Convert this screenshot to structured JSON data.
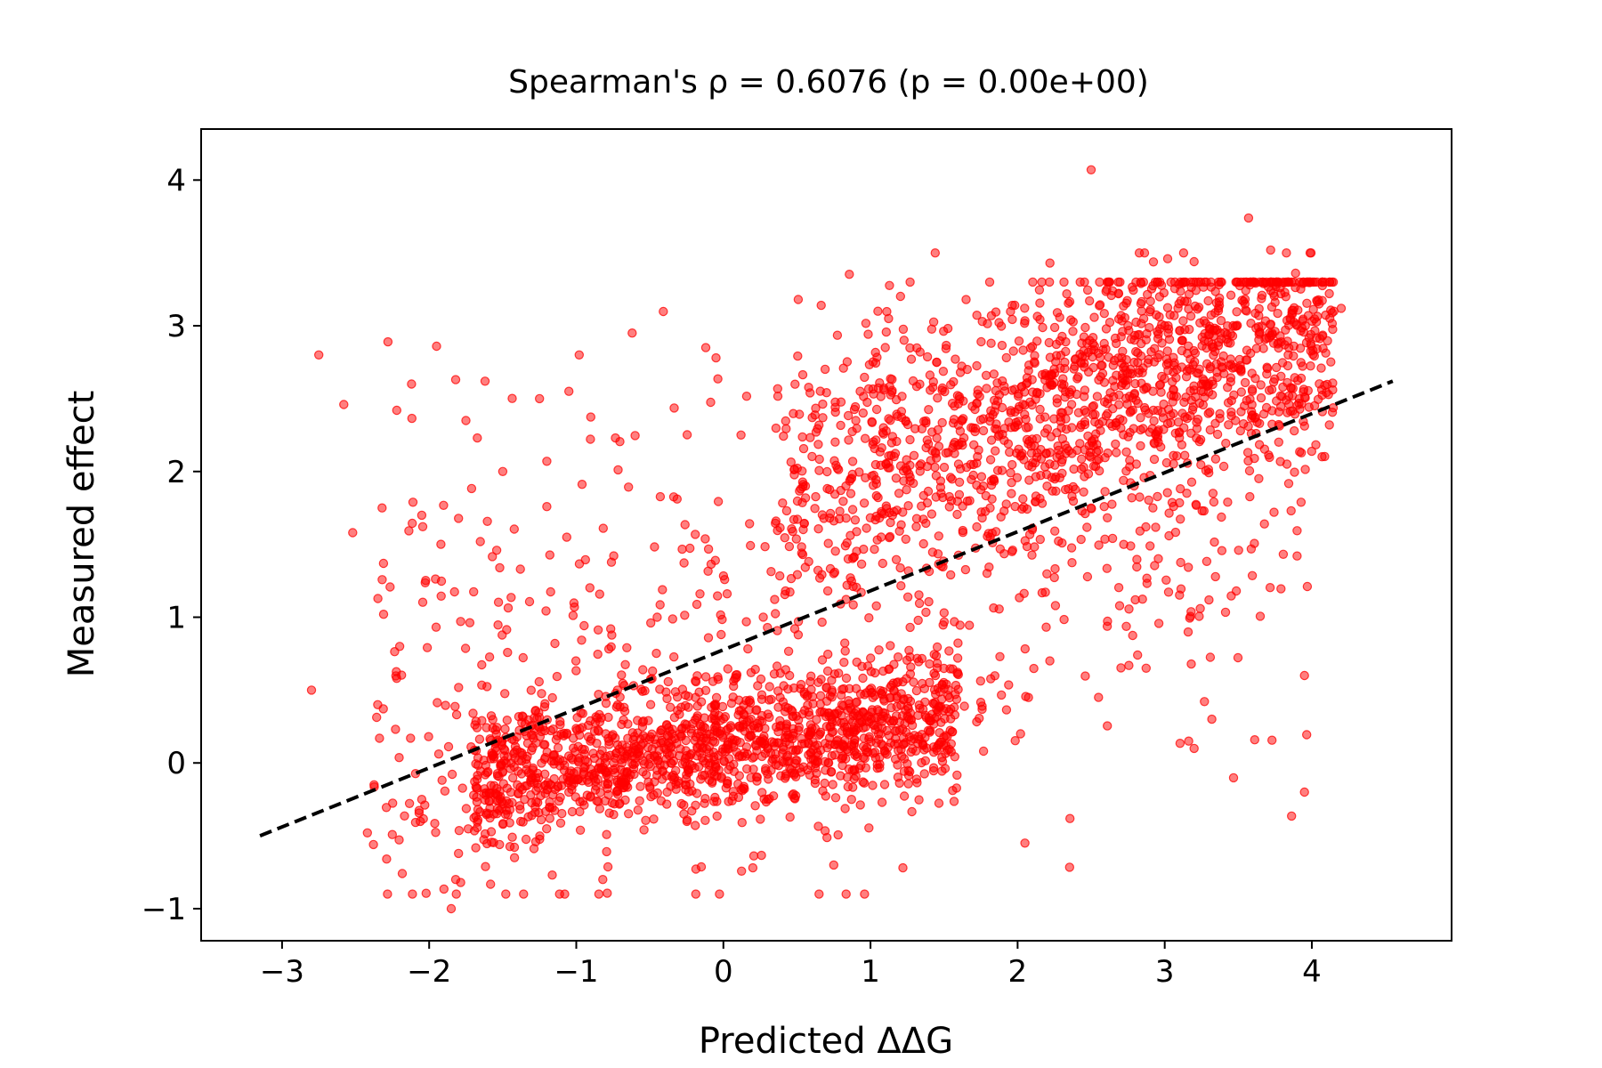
{
  "chart_data": {
    "type": "scatter",
    "title": "Spearman's ρ = 0.6076 (p = 0.00e+00)",
    "xlabel": "Predicted ΔΔG",
    "ylabel": "Measured effect",
    "xlim": [
      -3.55,
      4.95
    ],
    "ylim": [
      -1.22,
      4.35
    ],
    "xticks": [
      -3,
      -2,
      -1,
      0,
      1,
      2,
      3,
      4
    ],
    "xtick_labels": [
      "−3",
      "−2",
      "−1",
      "0",
      "1",
      "2",
      "3",
      "4"
    ],
    "yticks": [
      -1,
      0,
      1,
      2,
      3,
      4
    ],
    "ytick_labels": [
      "−1",
      "0",
      "1",
      "2",
      "3",
      "4"
    ],
    "grid": false,
    "legend": "none",
    "point_color": "#ff0000",
    "point_alpha": 0.5,
    "trend_line": {
      "style": "dashed",
      "color": "#000000",
      "x": [
        -3.15,
        4.55
      ],
      "y": [
        -0.5,
        2.62
      ]
    },
    "points_approx_count": 4000,
    "series": [
      {
        "values_note": "representative sample of individual points read from the figure",
        "x": [
          -2.8,
          -2.75,
          -2.58,
          -2.52,
          -2.35,
          -2.28,
          -2.31,
          -2.2,
          -2.32,
          -2.22,
          -2.12,
          -2.05,
          -1.95,
          -1.92,
          -1.82,
          -1.85,
          -1.75,
          -1.62,
          -1.5,
          -1.38,
          -1.25,
          -1.2,
          -1.05,
          -0.98,
          -0.82,
          -0.62,
          -0.45,
          -0.3,
          -0.12,
          -0.05,
          0.12,
          0.25,
          0.45,
          0.75,
          1.05,
          1.45,
          1.62,
          1.65,
          1.82,
          2.02,
          2.22,
          2.3,
          2.5,
          2.55,
          2.75,
          2.92,
          3.0,
          3.12,
          3.2,
          3.32,
          3.38,
          3.57,
          3.72,
          3.95,
          4.05,
          4.15,
          4.2,
          3.95,
          3.2,
          2.05,
          1.22,
          0.75,
          0.2,
          -0.25,
          -0.72,
          -0.8,
          -1.42,
          -1.82,
          -2.42,
          -2.05,
          3.02,
          3.45,
          3.9,
          2.6,
          2.8,
          2.1,
          1.48,
          0.9
        ],
        "y": [
          0.5,
          2.8,
          2.46,
          1.58,
          0.4,
          2.89,
          1.02,
          0.8,
          1.75,
          2.42,
          2.6,
          1.7,
          2.86,
          1.5,
          2.63,
          -1.0,
          2.35,
          2.62,
          2.0,
          1.33,
          2.5,
          2.07,
          2.55,
          2.8,
          -0.8,
          2.95,
          1.0,
          0.05,
          2.85,
          2.78,
          2.25,
          0.15,
          0.6,
          -0.7,
          3.1,
          2.75,
          2.2,
          3.18,
          2.88,
          0.2,
          3.43,
          2.6,
          4.07,
          0.45,
          3.0,
          2.55,
          3.0,
          2.9,
          3.44,
          0.3,
          2.95,
          3.74,
          3.52,
          0.6,
          3.15,
          3.1,
          3.12,
          -0.2,
          0.1,
          -0.55,
          -0.72,
          1.3,
          -0.72,
          0.05,
          0.5,
          0.2,
          -0.65,
          -0.8,
          -0.48,
          -0.25,
          3.46,
          3.21,
          1.42,
          2.84,
          1.12,
          1.6,
          1.85,
          2.35
        ]
      }
    ]
  }
}
